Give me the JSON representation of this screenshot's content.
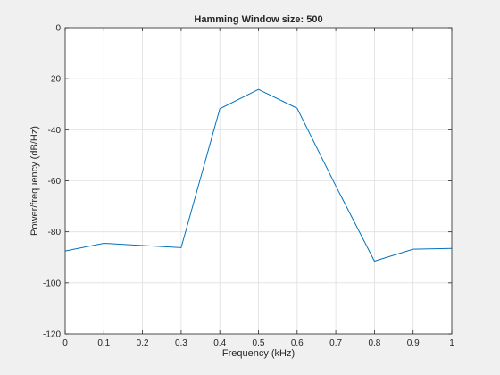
{
  "chart_data": {
    "type": "line",
    "title": "Hamming Window size: 500",
    "xlabel": "Frequency (kHz)",
    "ylabel": "Power/frequency (dB/Hz)",
    "xlim": [
      0,
      1
    ],
    "ylim": [
      -120,
      0
    ],
    "xticks": [
      0,
      0.1,
      0.2,
      0.3,
      0.4,
      0.5,
      0.6,
      0.7,
      0.8,
      0.9,
      1
    ],
    "xtick_labels": [
      "0",
      "0.1",
      "0.2",
      "0.3",
      "0.4",
      "0.5",
      "0.6",
      "0.7",
      "0.8",
      "0.9",
      "1"
    ],
    "yticks": [
      0,
      -20,
      -40,
      -60,
      -80,
      -100,
      -120
    ],
    "ytick_labels": [
      "0",
      "-20",
      "-40",
      "-60",
      "-80",
      "-100",
      "-120"
    ],
    "grid": true,
    "series": [
      {
        "x": [
          0,
          0.1,
          0.3,
          0.4,
          0.5,
          0.6,
          0.7,
          0.8,
          0.9,
          1.0
        ],
        "y": [
          -87.5,
          -84.5,
          -86.2,
          -31.8,
          -24.2,
          -31.6,
          -62.0,
          -91.5,
          -86.8,
          -86.5
        ],
        "color": "#0072bd"
      }
    ],
    "colors": {
      "figure_background": "#f0f0f0",
      "axes_background": "#ffffff",
      "grid": "#dfdfdf",
      "axis": "#262626"
    }
  }
}
